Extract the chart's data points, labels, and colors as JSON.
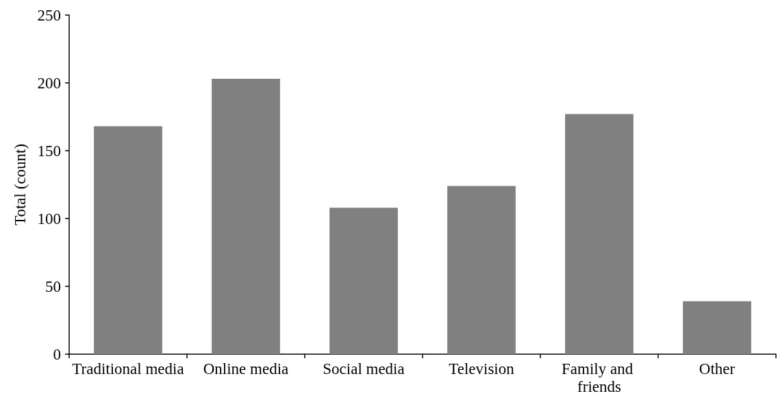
{
  "chart_data": {
    "type": "bar",
    "ylabel": "Total (count)",
    "categories": [
      "Traditional media",
      "Online media",
      "Social media",
      "Television",
      "Family and friends",
      "Other"
    ],
    "values": [
      168,
      203,
      108,
      124,
      177,
      39
    ],
    "color": "#808080",
    "ylim": [
      0,
      250
    ],
    "yticks": [
      0,
      50,
      100,
      150,
      200,
      250
    ],
    "grid": false
  }
}
